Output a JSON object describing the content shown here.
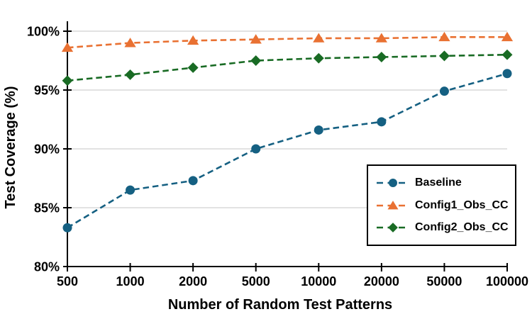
{
  "chart_data": {
    "type": "line",
    "title": "",
    "xlabel": "Number of Random Test Patterns",
    "ylabel": "Test Coverage (%)",
    "categories": [
      "500",
      "1000",
      "2000",
      "5000",
      "10000",
      "20000",
      "50000",
      "100000"
    ],
    "ylim": [
      80,
      100
    ],
    "yticks": [
      80,
      85,
      90,
      95,
      100
    ],
    "ytick_labels": [
      "80%",
      "85%",
      "90%",
      "95%",
      "100%"
    ],
    "grid": "horizontal-only",
    "gridline_color": "#D9D9D9",
    "axis_color": "#000000",
    "line_style": "dashed",
    "legend_position": "inside-bottom-right",
    "legend_border_color": "#000000",
    "series": [
      {
        "name": "Baseline",
        "marker": "circle",
        "color": "#156082",
        "values": [
          83.3,
          86.5,
          87.3,
          90.0,
          91.6,
          92.3,
          94.9,
          96.4
        ]
      },
      {
        "name": "Config1_Obs_CC",
        "marker": "triangle",
        "color": "#E97132",
        "values": [
          98.6,
          99.0,
          99.2,
          99.3,
          99.4,
          99.4,
          99.5,
          99.5
        ]
      },
      {
        "name": "Config2_Obs_CC",
        "marker": "diamond",
        "color": "#196B24",
        "values": [
          95.8,
          96.3,
          96.9,
          97.5,
          97.7,
          97.8,
          97.9,
          98.0
        ]
      }
    ]
  }
}
